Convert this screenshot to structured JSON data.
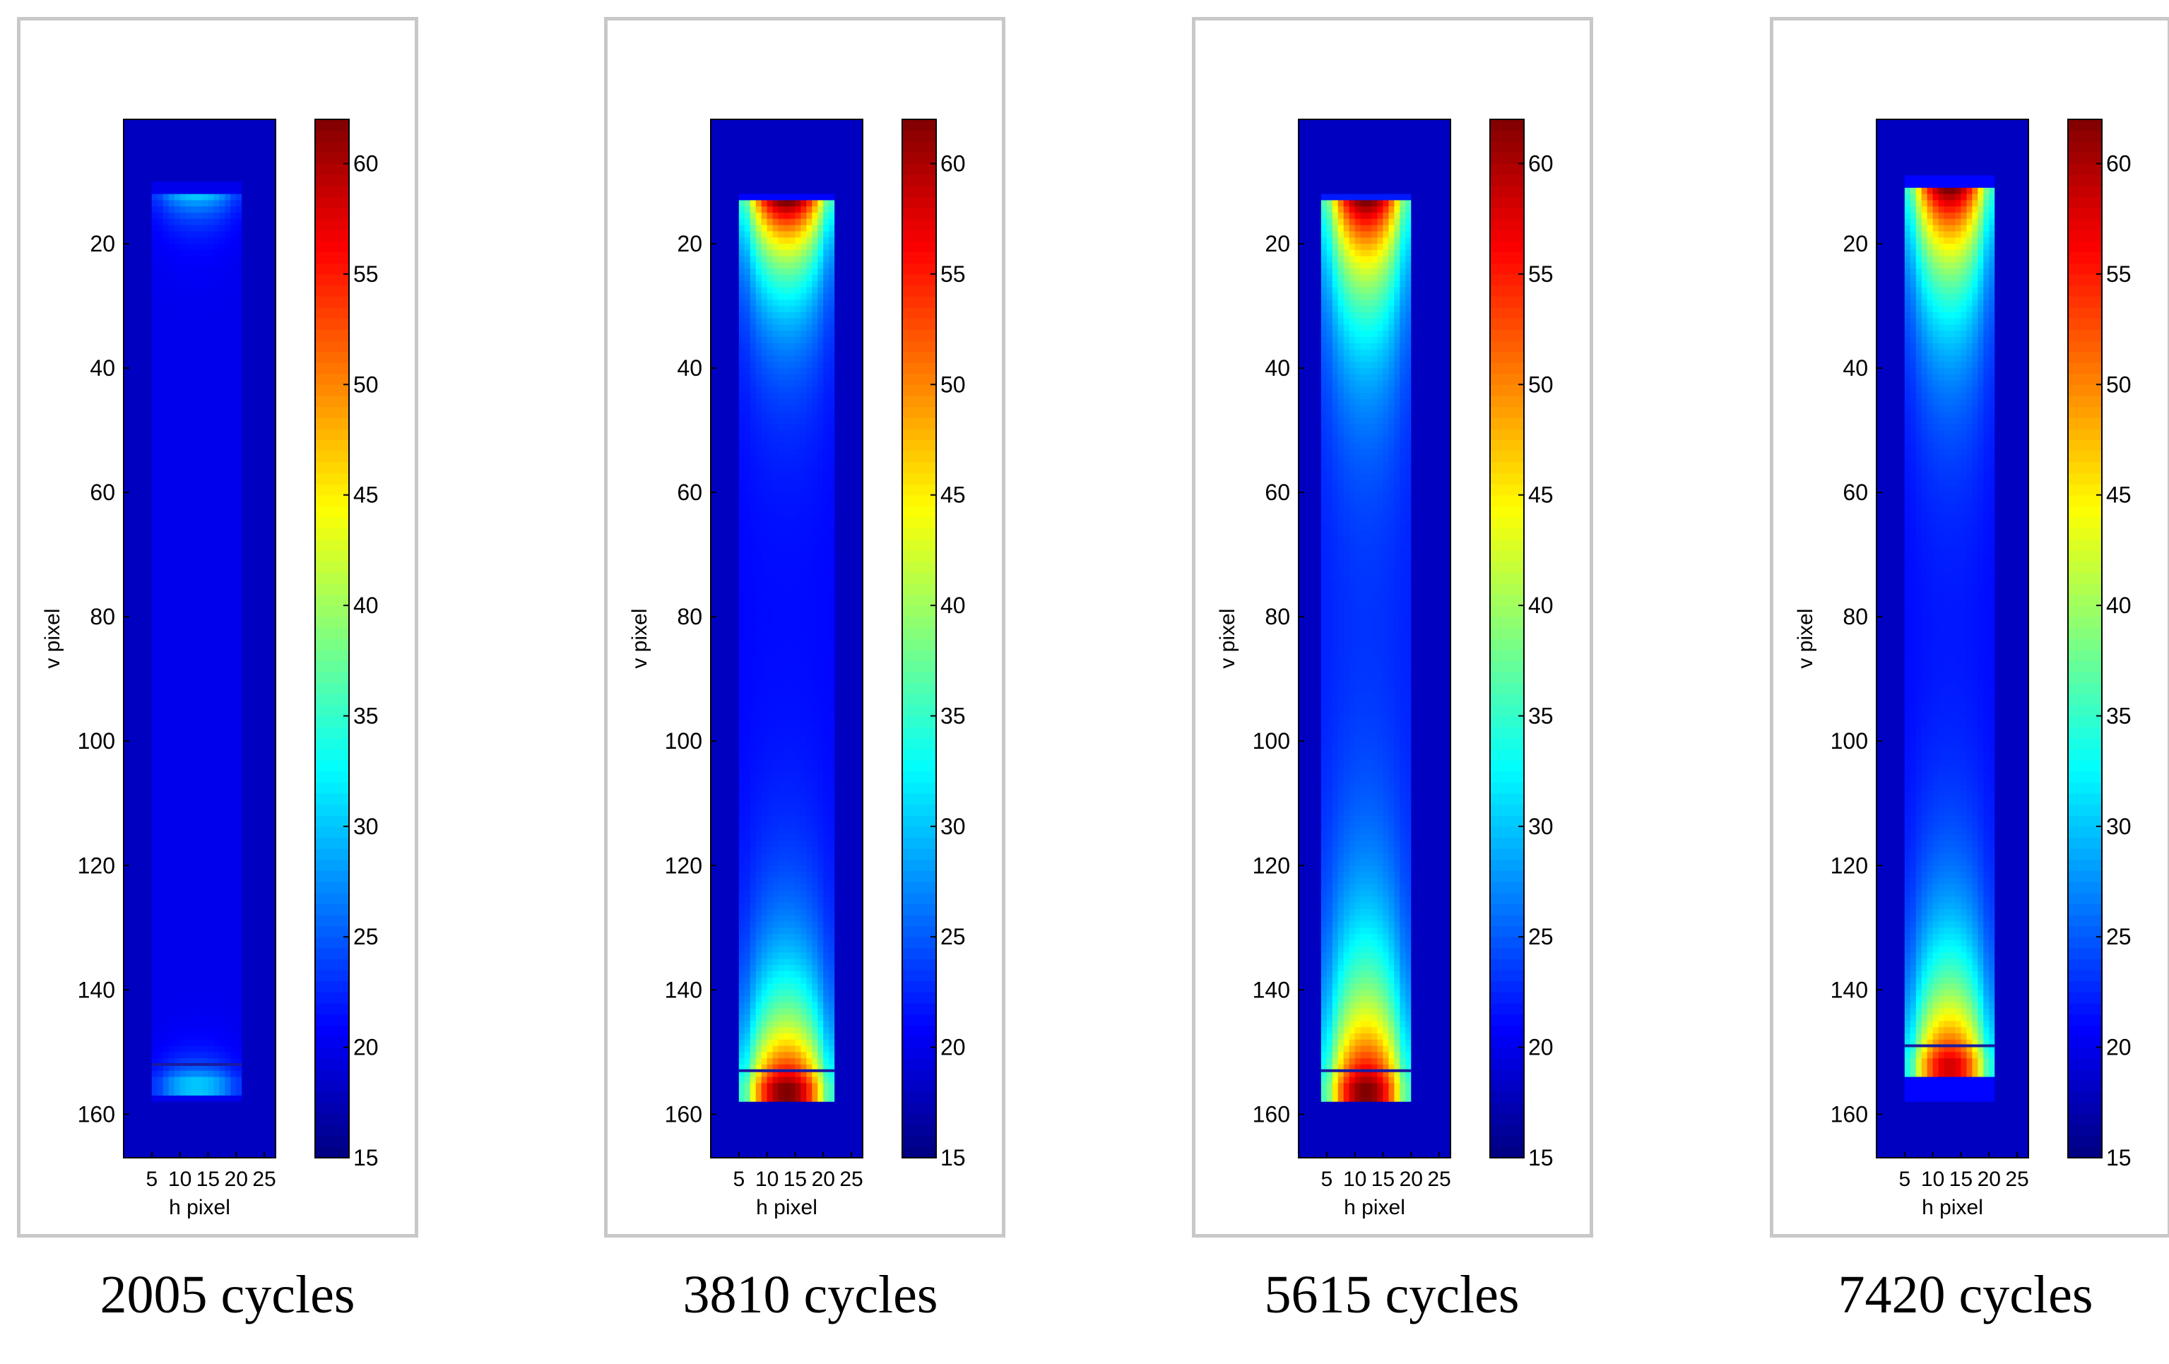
{
  "chart_data": [
    {
      "type": "heatmap",
      "title": "2005 cycles",
      "xlabel": "h pixel",
      "ylabel": "v pixel",
      "x_ticks": [
        5,
        10,
        15,
        20,
        25
      ],
      "y_ticks": [
        20,
        40,
        60,
        80,
        100,
        120,
        140,
        160
      ],
      "colorbar_ticks": [
        15,
        20,
        25,
        30,
        35,
        40,
        45,
        50,
        55,
        60
      ],
      "xlim": [
        0,
        27
      ],
      "ylim": [
        0,
        167
      ],
      "clim": [
        15,
        62
      ],
      "specimen_columns": [
        5,
        20
      ],
      "specimen_rows": [
        10,
        157
      ],
      "background_value": 18,
      "body_value": 20,
      "top_hotspot": {
        "center_row": 12,
        "peak_value": 30,
        "spread_rows": 4
      },
      "bottom_hotspot": {
        "center_row": 154,
        "peak_value": 30,
        "spread_rows": 3
      }
    },
    {
      "type": "heatmap",
      "title": "3810 cycles",
      "xlabel": "h pixel",
      "ylabel": "v pixel",
      "x_ticks": [
        5,
        10,
        15,
        20,
        25
      ],
      "y_ticks": [
        20,
        40,
        60,
        80,
        100,
        120,
        140,
        160
      ],
      "colorbar_ticks": [
        15,
        20,
        25,
        30,
        35,
        40,
        45,
        50,
        55,
        60
      ],
      "xlim": [
        0,
        27
      ],
      "ylim": [
        0,
        167
      ],
      "clim": [
        15,
        62
      ],
      "specimen_columns": [
        5,
        21
      ],
      "specimen_rows": [
        12,
        157
      ],
      "background_value": 18,
      "body_value": 21,
      "top_hotspot": {
        "center_row": 13,
        "peak_value": 62,
        "spread_rows": 12
      },
      "bottom_hotspot": {
        "center_row": 155,
        "peak_value": 62,
        "spread_rows": 14
      }
    },
    {
      "type": "heatmap",
      "title": "5615 cycles",
      "xlabel": "h pixel",
      "ylabel": "v pixel",
      "x_ticks": [
        5,
        10,
        15,
        20,
        25
      ],
      "y_ticks": [
        20,
        40,
        60,
        80,
        100,
        120,
        140,
        160
      ],
      "colorbar_ticks": [
        15,
        20,
        25,
        30,
        35,
        40,
        45,
        50,
        55,
        60
      ],
      "xlim": [
        0,
        27
      ],
      "ylim": [
        0,
        167
      ],
      "clim": [
        15,
        62
      ],
      "specimen_columns": [
        4,
        19
      ],
      "specimen_rows": [
        12,
        157
      ],
      "background_value": 18,
      "body_value": 22,
      "top_hotspot": {
        "center_row": 13,
        "peak_value": 62,
        "spread_rows": 16
      },
      "bottom_hotspot": {
        "center_row": 155,
        "peak_value": 62,
        "spread_rows": 18
      }
    },
    {
      "type": "heatmap",
      "title": "7420 cycles",
      "xlabel": "h pixel",
      "ylabel": "v pixel",
      "x_ticks": [
        5,
        10,
        15,
        20,
        25
      ],
      "y_ticks": [
        20,
        40,
        60,
        80,
        100,
        120,
        140,
        160
      ],
      "colorbar_ticks": [
        15,
        20,
        25,
        30,
        35,
        40,
        45,
        50,
        55,
        60
      ],
      "xlim": [
        0,
        27
      ],
      "ylim": [
        0,
        167
      ],
      "clim": [
        15,
        62
      ],
      "specimen_columns": [
        5,
        20
      ],
      "specimen_rows": [
        9,
        157
      ],
      "background_value": 18,
      "body_value": 21,
      "top_hotspot": {
        "center_row": 11,
        "peak_value": 62,
        "spread_rows": 16
      },
      "bottom_hotspot": {
        "center_row": 151,
        "peak_value": 58,
        "spread_rows": 16
      }
    }
  ]
}
